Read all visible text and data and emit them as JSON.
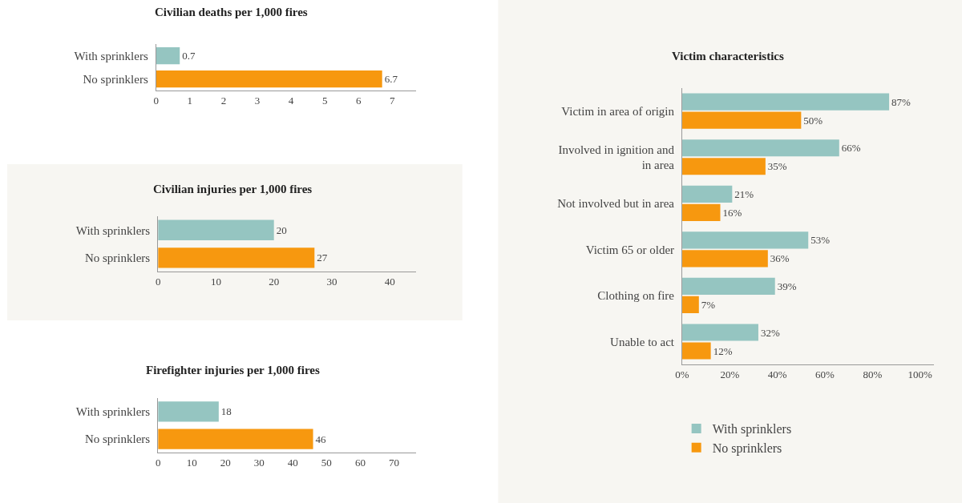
{
  "chart_data": [
    {
      "type": "bar",
      "orientation": "horizontal",
      "title": "Civilian deaths per 1,000 fires",
      "categories": [
        "With sprinklers",
        "No sprinklers"
      ],
      "values": [
        0.7,
        6.7
      ],
      "colors": [
        "#95c5c1",
        "#f7980f"
      ],
      "xlim": [
        0,
        7.7
      ],
      "xticks": [
        0,
        1,
        2,
        3,
        4,
        5,
        6,
        7
      ],
      "data_labels": true,
      "grid": false,
      "legend": false
    },
    {
      "type": "bar",
      "orientation": "horizontal",
      "title": "Civilian injuries per 1,000 fires",
      "categories": [
        "With sprinklers",
        "No sprinklers"
      ],
      "values": [
        20,
        27
      ],
      "colors": [
        "#95c5c1",
        "#f7980f"
      ],
      "xlim": [
        0,
        44.5
      ],
      "xticks": [
        0,
        10,
        20,
        30,
        40
      ],
      "data_labels": true,
      "grid": false,
      "legend": false
    },
    {
      "type": "bar",
      "orientation": "horizontal",
      "title": "Firefighter injuries per 1,000 fires",
      "categories": [
        "With sprinklers",
        "No sprinklers"
      ],
      "values": [
        18,
        46
      ],
      "colors": [
        "#95c5c1",
        "#f7980f"
      ],
      "xlim": [
        0,
        76.5
      ],
      "xticks": [
        0,
        10,
        20,
        30,
        40,
        50,
        60,
        70
      ],
      "data_labels": true,
      "grid": false,
      "legend": false
    },
    {
      "type": "bar",
      "orientation": "horizontal",
      "title": "Victim characteristics",
      "categories": [
        "Victim in area of origin",
        "Involved in ignition and in area",
        "Not involved but in area",
        "Victim 65 or older",
        "Clothing on fire",
        "Unable to act"
      ],
      "series": [
        {
          "name": "With sprinklers",
          "color": "#95c5c1",
          "values": [
            87,
            66,
            21,
            53,
            39,
            32
          ],
          "value_labels": [
            "87%",
            "66%",
            "21%",
            "53%",
            "39%",
            "32%"
          ]
        },
        {
          "name": "No sprinklers",
          "color": "#f7980f",
          "values": [
            50,
            35,
            16,
            36,
            7,
            12
          ],
          "value_labels": [
            "50%",
            "35%",
            "16%",
            "36%",
            "7%",
            "12%"
          ]
        }
      ],
      "xlim": [
        0,
        106
      ],
      "xticks": [
        {
          "value": 0,
          "label": "0%"
        },
        {
          "value": 20,
          "label": "20%"
        },
        {
          "value": 40,
          "label": "40%"
        },
        {
          "value": 60,
          "label": "60%"
        },
        {
          "value": 80,
          "label": "80%"
        },
        {
          "value": 100,
          "label": "100%"
        }
      ],
      "grid": false,
      "legend": "bottom"
    }
  ]
}
